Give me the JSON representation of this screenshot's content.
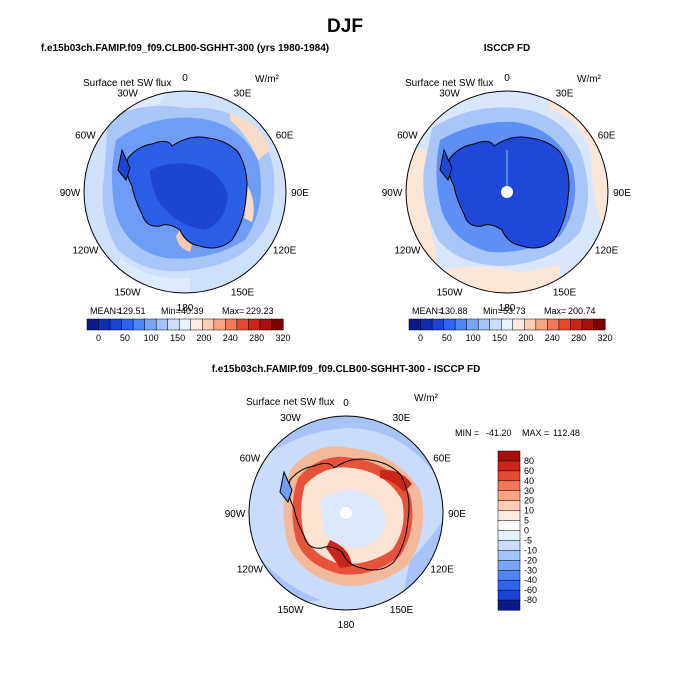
{
  "figure": {
    "season": "DJF",
    "model_caption": "f.e15b03ch.FAMIP.f09_f09.CLB00-SGHHT-300 (yrs 1980-1984)",
    "obs_caption": "ISCCP FD",
    "diff_caption": "f.e15b03ch.FAMIP.f09_f09.CLB00-SGHHT-300 - ISCCP FD"
  },
  "chart_data": [
    {
      "type": "polar-contour",
      "panel": "model",
      "variable": "Surface net SW flux",
      "units": "W/m²",
      "longitude_labels": [
        "0",
        "30E",
        "60E",
        "90E",
        "120E",
        "150E",
        "180",
        "150W",
        "120W",
        "90W",
        "60W",
        "30W"
      ],
      "stats": {
        "mean_label": "MEAN=",
        "mean": "129.51",
        "min_label": "Min=",
        "min": "40.39",
        "max_label": "Max=",
        "max": "229.23"
      },
      "colorbar": {
        "orientation": "horizontal",
        "ticks": [
          "0",
          "50",
          "100",
          "150",
          "200",
          "240",
          "280",
          "320"
        ],
        "colors": [
          "#0a1a8a",
          "#0f2fb0",
          "#1a44d6",
          "#2e64f0",
          "#4f86f5",
          "#79a5f7",
          "#a3c3fa",
          "#cbdcfc",
          "#e8f1fe",
          "#fdebe0",
          "#fbcdb4",
          "#f7a582",
          "#f07a57",
          "#e34a30",
          "#cc2417",
          "#a50f0c",
          "#7a0000"
        ]
      }
    },
    {
      "type": "polar-contour",
      "panel": "observations",
      "variable": "Surface net SW flux",
      "units": "W/m²",
      "longitude_labels": [
        "0",
        "30E",
        "60E",
        "90E",
        "120E",
        "150E",
        "180",
        "150W",
        "120W",
        "90W",
        "60W",
        "30W"
      ],
      "stats": {
        "mean_label": "MEAN=",
        "mean": "130.88",
        "min_label": "Min=",
        "min": "53.73",
        "max_label": "Max=",
        "max": "200.74"
      },
      "colorbar": {
        "orientation": "horizontal",
        "ticks": [
          "0",
          "50",
          "100",
          "150",
          "200",
          "240",
          "280",
          "320"
        ],
        "colors": [
          "#0a1a8a",
          "#0f2fb0",
          "#1a44d6",
          "#2e64f0",
          "#4f86f5",
          "#79a5f7",
          "#a3c3fa",
          "#cbdcfc",
          "#e8f1fe",
          "#fdebe0",
          "#fbcdb4",
          "#f7a582",
          "#f07a57",
          "#e34a30",
          "#cc2417",
          "#a50f0c",
          "#7a0000"
        ]
      }
    },
    {
      "type": "polar-contour",
      "panel": "difference",
      "variable": "Surface net SW flux",
      "units": "W/m²",
      "longitude_labels": [
        "0",
        "30E",
        "60E",
        "90E",
        "120E",
        "150E",
        "180",
        "150W",
        "120W",
        "90W",
        "60W",
        "30W"
      ],
      "stats": {
        "min_label": "MIN =",
        "min": "-41.20",
        "max_label": "MAX =",
        "max": "112.48"
      },
      "colorbar": {
        "orientation": "vertical",
        "ticks": [
          "80",
          "60",
          "40",
          "30",
          "20",
          "10",
          "5",
          "0",
          "-5",
          "-10",
          "-20",
          "-30",
          "-40",
          "-60",
          "-80"
        ],
        "colors": [
          "#a50f0c",
          "#cc2417",
          "#e34a30",
          "#f07a57",
          "#f7a582",
          "#fbcdb4",
          "#fdebe0",
          "#ffffff",
          "#e8f1fe",
          "#cbdcfc",
          "#a3c3fa",
          "#79a5f7",
          "#4f86f5",
          "#2e64f0",
          "#1a44d6",
          "#0a1a8a"
        ]
      }
    }
  ]
}
